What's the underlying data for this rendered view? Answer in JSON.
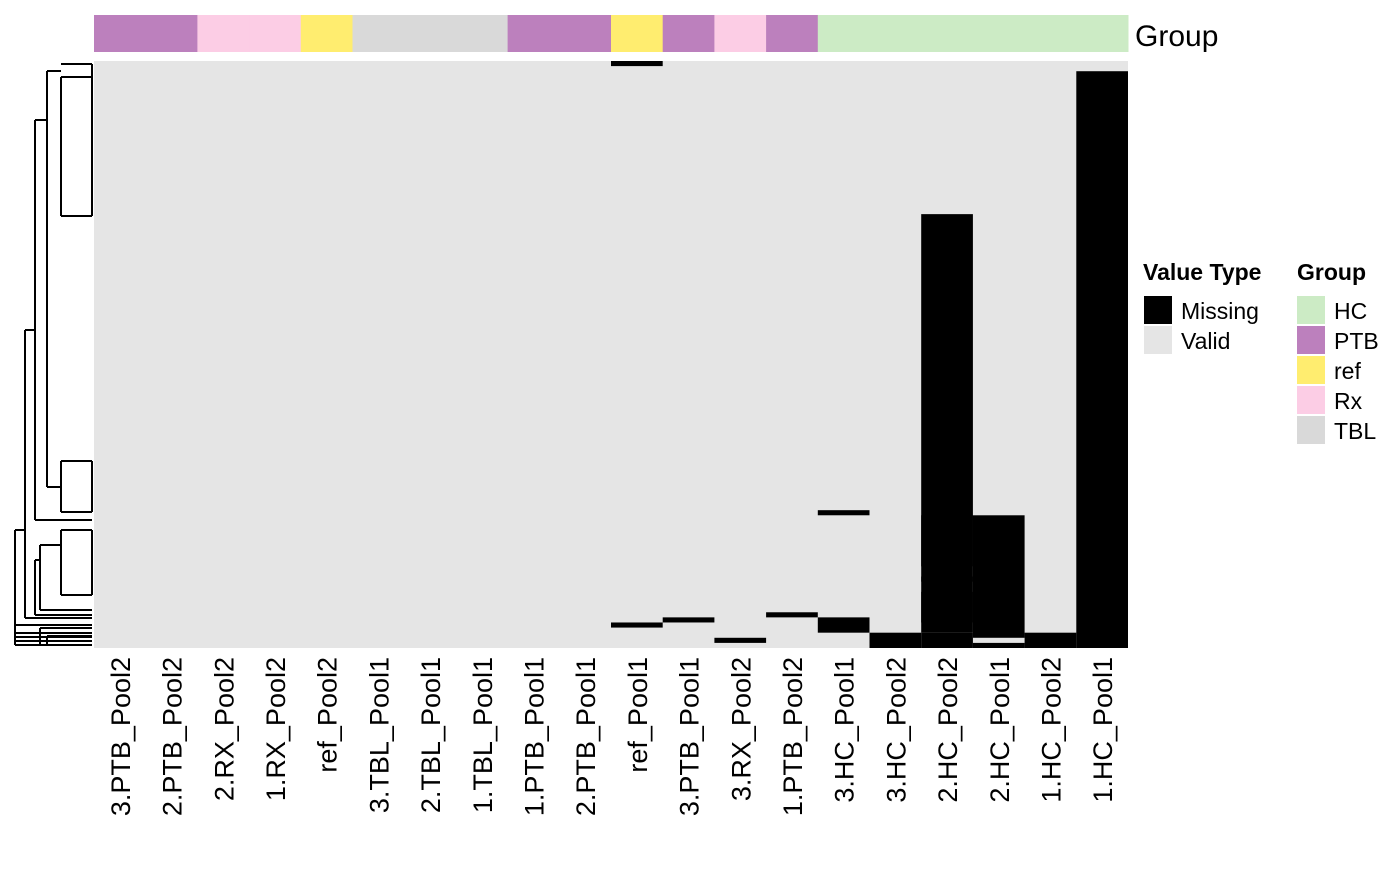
{
  "chart_data": {
    "type": "heatmap",
    "columns": [
      "3.PTB_Pool2",
      "2.PTB_Pool2",
      "2.RX_Pool2",
      "1.RX_Pool2",
      "ref_Pool2",
      "3.TBL_Pool1",
      "2.TBL_Pool1",
      "1.TBL_Pool1",
      "1.PTB_Pool1",
      "2.PTB_Pool1",
      "ref_Pool1",
      "3.PTB_Pool1",
      "3.RX_Pool2",
      "1.PTB_Pool2",
      "3.HC_Pool1",
      "3.HC_Pool2",
      "2.HC_Pool2",
      "2.HC_Pool1",
      "1.HC_Pool2",
      "1.HC_Pool1"
    ],
    "column_groups": [
      "PTB",
      "PTB",
      "Rx",
      "Rx",
      "ref",
      "TBL",
      "TBL",
      "TBL",
      "PTB",
      "PTB",
      "ref",
      "PTB",
      "Rx",
      "PTB",
      "HC",
      "HC",
      "HC",
      "HC",
      "HC",
      "HC"
    ],
    "annotation_title": "Group",
    "value_legend": {
      "title": "Value Type",
      "entries": [
        {
          "label": "Missing",
          "color": "#000000"
        },
        {
          "label": "Valid",
          "color": "#e5e5e5"
        }
      ]
    },
    "group_legend": {
      "title": "Group",
      "entries": [
        {
          "label": "HC",
          "color": "#ccebc5"
        },
        {
          "label": "PTB",
          "color": "#bc80bd"
        },
        {
          "label": "ref",
          "color": "#ffed6f"
        },
        {
          "label": "Rx",
          "color": "#fccde5"
        },
        {
          "label": "TBL",
          "color": "#d9d9d9"
        }
      ]
    },
    "n_rows": 115,
    "missing_row_ranges": [
      [
        10,
        0,
        1
      ],
      [
        19,
        2,
        115
      ],
      [
        16,
        30,
        112
      ],
      [
        16,
        89,
        99
      ],
      [
        16,
        101,
        102
      ],
      [
        16,
        104,
        110
      ],
      [
        17,
        89,
        113
      ],
      [
        14,
        88,
        89
      ],
      [
        14,
        109,
        112
      ],
      [
        15,
        112,
        115
      ],
      [
        16,
        112,
        115
      ],
      [
        17,
        114,
        115
      ],
      [
        18,
        112,
        115
      ],
      [
        13,
        108,
        109
      ],
      [
        11,
        109,
        110
      ],
      [
        10,
        110,
        111
      ],
      [
        12,
        113,
        114
      ]
    ]
  }
}
